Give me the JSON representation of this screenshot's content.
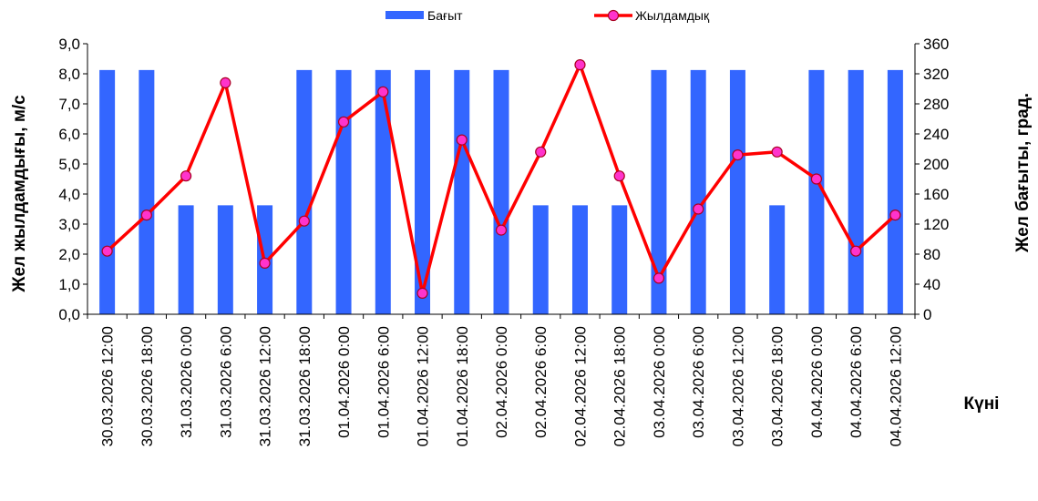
{
  "chart_data": {
    "type": "bar+line",
    "title": "",
    "xlabel": "Күні",
    "ylabel_left": "Жел жылдамдығы, м/с",
    "ylabel_right": "Жел бағыты, град.",
    "ylim_left": [
      0,
      9
    ],
    "yticks_left": [
      "0,0",
      "1,0",
      "2,0",
      "3,0",
      "4,0",
      "5,0",
      "6,0",
      "7,0",
      "8,0",
      "9,0"
    ],
    "ylim_right": [
      0,
      360
    ],
    "yticks_right": [
      "0",
      "40",
      "80",
      "120",
      "160",
      "200",
      "240",
      "280",
      "320",
      "360"
    ],
    "grid": false,
    "legend_position": "top",
    "categories": [
      "30.03.2026 12:00",
      "30.03.2026 18:00",
      "31.03.2026 0:00",
      "31.03.2026 6:00",
      "31.03.2026 12:00",
      "31.03.2026 18:00",
      "01.04.2026 0:00",
      "01.04.2026 6:00",
      "01.04.2026 12:00",
      "01.04.2026 18:00",
      "02.04.2026 0:00",
      "02.04.2026 6:00",
      "02.04.2026 12:00",
      "02.04.2026 18:00",
      "03.04.2026 0:00",
      "03.04.2026 6:00",
      "03.04.2026 12:00",
      "03.04.2026 18:00",
      "04.04.2026 0:00",
      "04.04.2026 6:00",
      "04.04.2026 12:00"
    ],
    "series": [
      {
        "name": "Бағыт",
        "type": "bar",
        "axis": "right",
        "color": "#3366ff",
        "values": [
          325,
          325,
          145,
          145,
          145,
          325,
          325,
          325,
          325,
          325,
          325,
          145,
          145,
          145,
          325,
          325,
          325,
          145,
          325,
          325,
          325
        ]
      },
      {
        "name": "Жылдамдық",
        "type": "line",
        "axis": "left",
        "color": "#ff0000",
        "marker_color": "#ff33cc",
        "values": [
          2.1,
          3.3,
          4.6,
          7.7,
          1.7,
          3.1,
          6.4,
          7.4,
          0.7,
          5.8,
          2.8,
          5.4,
          8.3,
          4.6,
          1.2,
          3.5,
          5.3,
          5.4,
          4.5,
          2.1,
          3.3
        ]
      }
    ]
  }
}
